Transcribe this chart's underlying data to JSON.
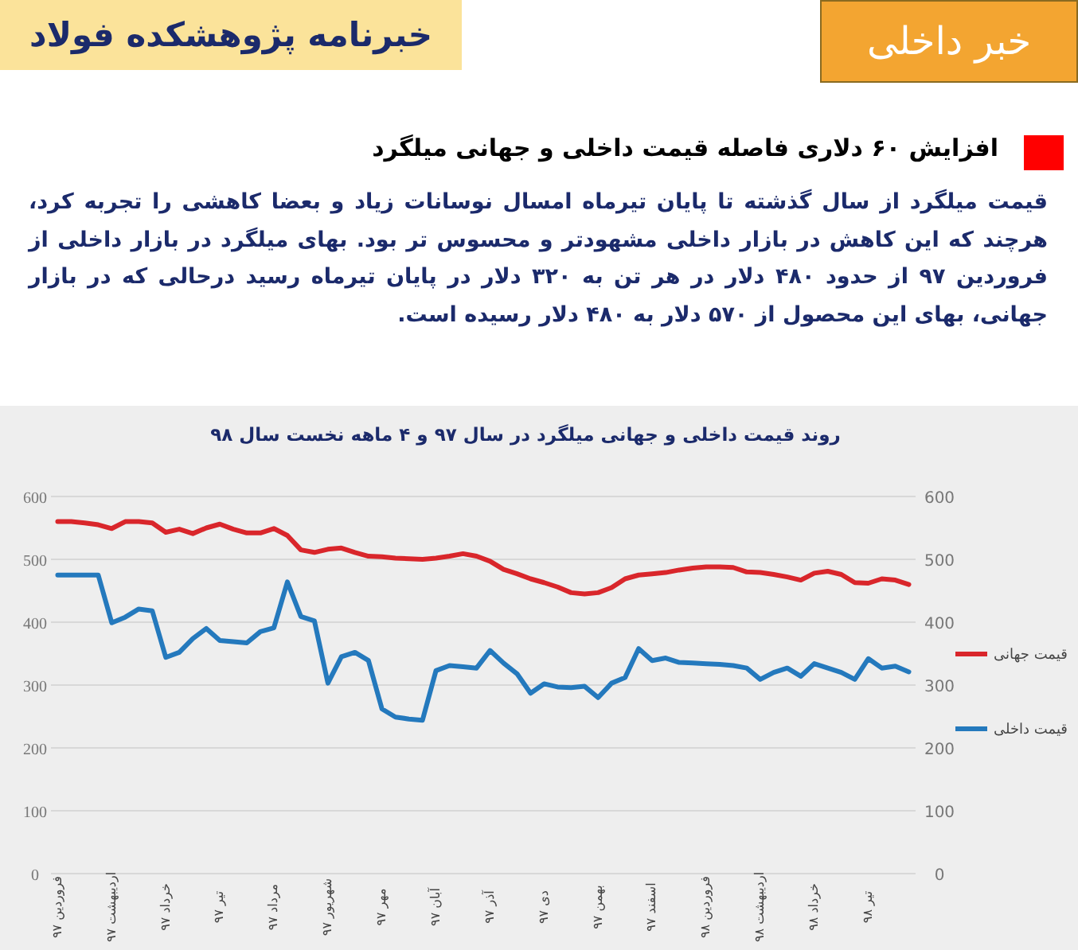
{
  "chart_data": {
    "type": "line",
    "title": "روند قیمت داخلی و جهانی میلگرد در سال ۹۷ و ۴ ماهه نخست سال ۹۸",
    "annotations": [
      "خبرنامه پژوهشکده فولاد",
      "خبر داخلی",
      "افزایش ۶۰ دلاری فاصله قیمت داخلی و جهانی میلگرد",
      "قیمت میلگرد از سال گذشته تا پایان تیرماه امسال نوسانات زیاد و بعضا کاهشی را تجربه کرد، هرچند که این کاهش در بازار داخلی مشهودتر و محسوس تر بود. بهای میلگرد در بازار داخلی از فروردین ۹۷ از حدود ۴۸۰ دلار در هر تن به ۳۲۰ دلار در پایان تیرماه رسید درحالی که در بازار جهانی، بهای این محصول از ۵۷۰ دلار به ۴۸۰ دلار رسیده است."
    ],
    "categories": [
      "فروردین ۹۷",
      null,
      null,
      null,
      "اردیبهشت ۹۷",
      null,
      null,
      null,
      "خرداد ۹۷",
      null,
      null,
      null,
      "تیر ۹۷",
      null,
      null,
      null,
      "مرداد ۹۷",
      null,
      null,
      null,
      "شهریور ۹۷",
      null,
      null,
      null,
      "مهر ۹۷",
      null,
      null,
      null,
      "آبان ۹۷",
      null,
      null,
      null,
      "آذر ۹۷",
      null,
      null,
      null,
      "دی ۹۷",
      null,
      null,
      null,
      "بهمن ۹۷",
      null,
      null,
      null,
      "اسفند ۹۷",
      null,
      null,
      null,
      "فروردین ۹۸",
      null,
      null,
      null,
      "اردیبهشت ۹۸",
      null,
      null,
      null,
      "خرداد ۹۸",
      null,
      null,
      null,
      "تیر ۹۸",
      null,
      null,
      null
    ],
    "ylim": [
      0,
      600
    ],
    "yticks": [
      0,
      100,
      200,
      300,
      400,
      500,
      600
    ],
    "y2lim": [
      0,
      600
    ],
    "y2ticks": [
      0,
      100,
      200,
      300,
      400,
      500,
      600
    ],
    "grid": "y",
    "legend": "right",
    "series": [
      {
        "name": "قیمت جهانی",
        "color": "#d9262b",
        "values": [
          560,
          560,
          558,
          555,
          549,
          560,
          560,
          558,
          543,
          548,
          541,
          550,
          556,
          548,
          542,
          542,
          549,
          538,
          515,
          511,
          516,
          518,
          511,
          505,
          504,
          502,
          501,
          500,
          502,
          505,
          509,
          505,
          497,
          484,
          477,
          469,
          463,
          456,
          447,
          445,
          447,
          455,
          469,
          475,
          477,
          479,
          483,
          486,
          488,
          488,
          487,
          480,
          479,
          476,
          472,
          467,
          478,
          481,
          476,
          463,
          462,
          469,
          467,
          460
        ]
      },
      {
        "name": "قیمت داخلی",
        "color": "#2479bd",
        "values": [
          475,
          475,
          475,
          475,
          399,
          408,
          421,
          418,
          344,
          352,
          374,
          390,
          371,
          369,
          367,
          385,
          391,
          464,
          409,
          402,
          303,
          345,
          352,
          339,
          262,
          249,
          246,
          244,
          323,
          331,
          329,
          327,
          355,
          335,
          318,
          287,
          302,
          297,
          296,
          298,
          280,
          303,
          312,
          358,
          339,
          343,
          336,
          335,
          334,
          333,
          331,
          327,
          309,
          320,
          327,
          314,
          334,
          327,
          320,
          309,
          342,
          327,
          330,
          321
        ]
      }
    ]
  }
}
